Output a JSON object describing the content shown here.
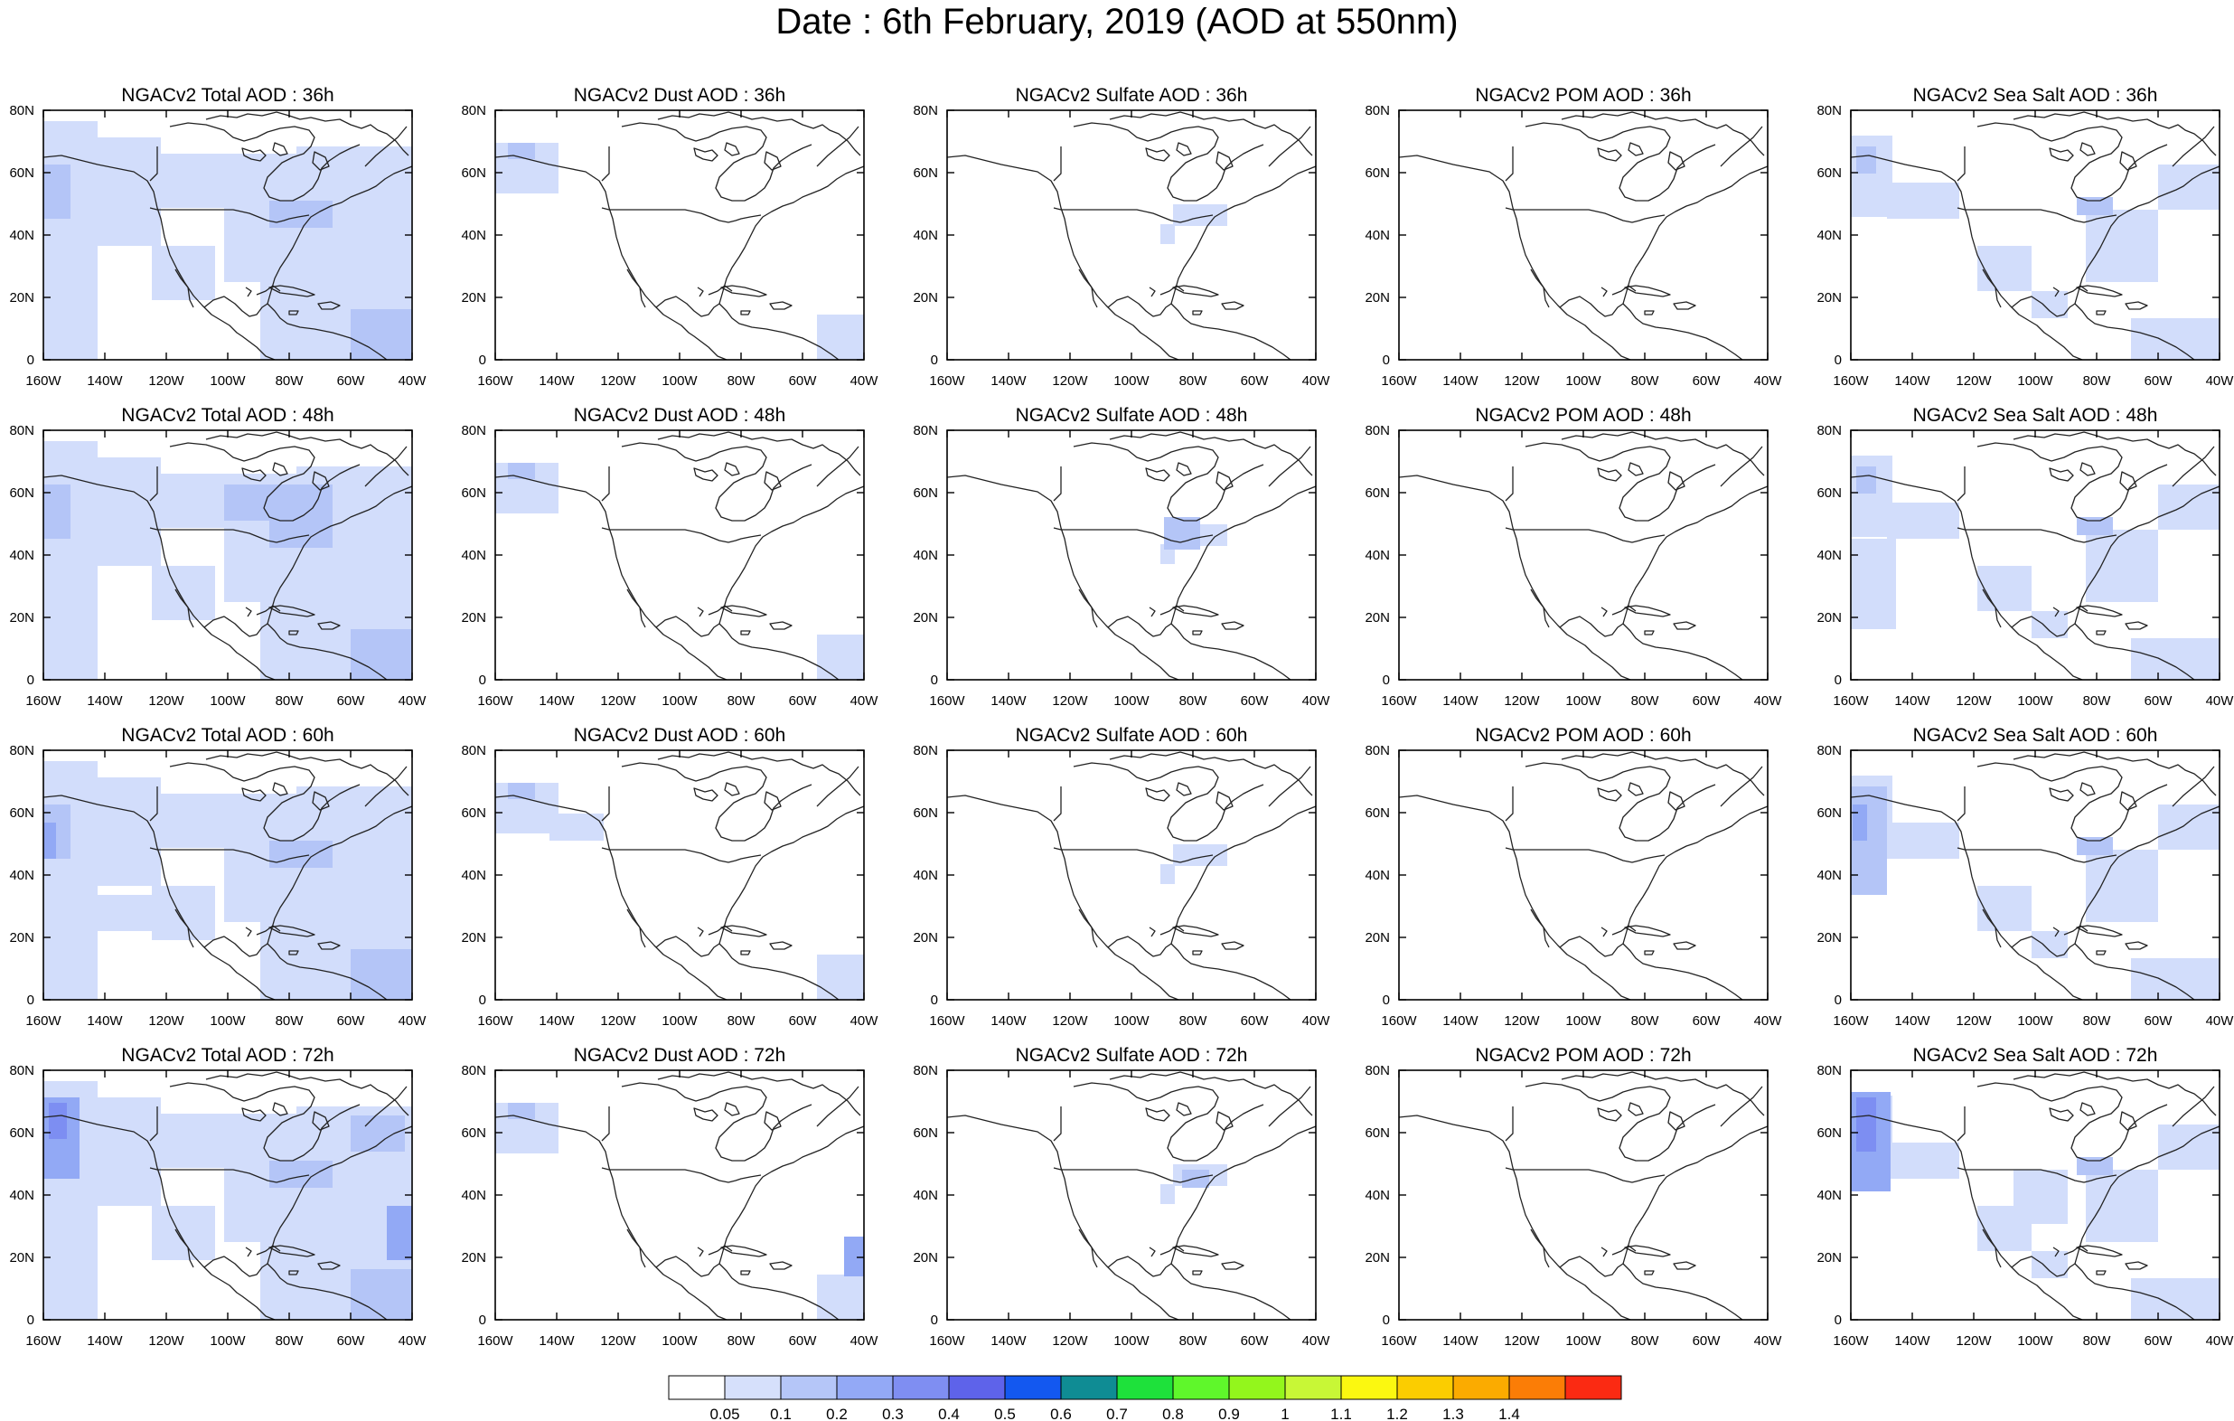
{
  "title": "Date : 6th February, 2019 (AOD at 550nm)",
  "x_ticks": [
    "160W",
    "140W",
    "120W",
    "100W",
    "80W",
    "60W",
    "40W"
  ],
  "y_ticks": [
    "80N",
    "60N",
    "40N",
    "20N",
    "0"
  ],
  "rows": [
    {
      "panels": [
        {
          "title": "NGACv2 Total AOD : 36h",
          "species": "total",
          "forecast_hour": 36
        },
        {
          "title": "NGACv2 Dust AOD : 36h",
          "species": "dust",
          "forecast_hour": 36
        },
        {
          "title": "NGACv2 Sulfate AOD : 36h",
          "species": "sulfate",
          "forecast_hour": 36
        },
        {
          "title": "NGACv2 POM AOD : 36h",
          "species": "pom",
          "forecast_hour": 36
        },
        {
          "title": "NGACv2 Sea Salt AOD : 36h",
          "species": "seasalt",
          "forecast_hour": 36
        }
      ]
    },
    {
      "panels": [
        {
          "title": "NGACv2 Total AOD : 48h",
          "species": "total",
          "forecast_hour": 48
        },
        {
          "title": "NGACv2 Dust AOD : 48h",
          "species": "dust",
          "forecast_hour": 48
        },
        {
          "title": "NGACv2 Sulfate AOD : 48h",
          "species": "sulfate",
          "forecast_hour": 48
        },
        {
          "title": "NGACv2 POM AOD : 48h",
          "species": "pom",
          "forecast_hour": 48
        },
        {
          "title": "NGACv2 Sea Salt AOD : 48h",
          "species": "seasalt",
          "forecast_hour": 48
        }
      ]
    },
    {
      "panels": [
        {
          "title": "NGACv2 Total AOD : 60h",
          "species": "total",
          "forecast_hour": 60
        },
        {
          "title": "NGACv2 Dust AOD : 60h",
          "species": "dust",
          "forecast_hour": 60
        },
        {
          "title": "NGACv2 Sulfate AOD : 60h",
          "species": "sulfate",
          "forecast_hour": 60
        },
        {
          "title": "NGACv2 POM AOD : 60h",
          "species": "pom",
          "forecast_hour": 60
        },
        {
          "title": "NGACv2 Sea Salt AOD : 60h",
          "species": "seasalt",
          "forecast_hour": 60
        }
      ]
    },
    {
      "panels": [
        {
          "title": "NGACv2 Total AOD : 72h",
          "species": "total",
          "forecast_hour": 72
        },
        {
          "title": "NGACv2 Dust AOD : 72h",
          "species": "dust",
          "forecast_hour": 72
        },
        {
          "title": "NGACv2 Sulfate AOD : 72h",
          "species": "sulfate",
          "forecast_hour": 72
        },
        {
          "title": "NGACv2 POM AOD : 72h",
          "species": "pom",
          "forecast_hour": 72
        },
        {
          "title": "NGACv2 Sea Salt  AOD : 72h",
          "species": "seasalt",
          "forecast_hour": 72
        }
      ]
    }
  ],
  "colorbar": {
    "labels": [
      "0.05",
      "0.1",
      "0.2",
      "0.3",
      "0.4",
      "0.5",
      "0.6",
      "0.7",
      "0.8",
      "0.9",
      "1",
      "1.1",
      "1.2",
      "1.3",
      "1.4"
    ],
    "colors": [
      "#ffffff",
      "#d6e0fb",
      "#b5c6f8",
      "#93a9f6",
      "#7f8ef2",
      "#5e63ea",
      "#1358f0",
      "#0f8c94",
      "#1ee13b",
      "#5ff72b",
      "#93f61c",
      "#c8f736",
      "#fbf810",
      "#fbcd00",
      "#fbab00",
      "#fb7d06",
      "#fb2a12"
    ]
  }
}
